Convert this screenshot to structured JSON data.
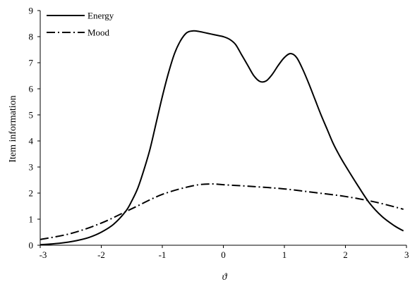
{
  "chart_data": {
    "type": "line",
    "xlabel": "ϑ",
    "ylabel": "Item information",
    "xlim": [
      -3,
      3
    ],
    "ylim": [
      0,
      9
    ],
    "xticks": [
      "-3",
      "-2",
      "-1",
      "0",
      "1",
      "2",
      "3"
    ],
    "yticks": [
      "0",
      "1",
      "2",
      "3",
      "4",
      "5",
      "6",
      "7",
      "8",
      "9"
    ],
    "grid": false,
    "legend_position": "top-left",
    "series": [
      {
        "name": "Energy",
        "style": "solid",
        "color": "#000000",
        "x": [
          -3,
          -2.8,
          -2.6,
          -2.4,
          -2.2,
          -2.0,
          -1.8,
          -1.6,
          -1.5,
          -1.4,
          -1.3,
          -1.2,
          -1.1,
          -1.0,
          -0.9,
          -0.8,
          -0.7,
          -0.6,
          -0.5,
          -0.4,
          -0.3,
          -0.2,
          -0.1,
          0.0,
          0.1,
          0.2,
          0.3,
          0.4,
          0.5,
          0.6,
          0.7,
          0.8,
          0.9,
          1.0,
          1.1,
          1.2,
          1.3,
          1.4,
          1.5,
          1.6,
          1.7,
          1.8,
          1.9,
          2.0,
          2.2,
          2.4,
          2.6,
          2.8,
          2.95
        ],
        "y": [
          0.02,
          0.05,
          0.1,
          0.18,
          0.3,
          0.5,
          0.8,
          1.3,
          1.7,
          2.2,
          2.9,
          3.7,
          4.7,
          5.7,
          6.6,
          7.35,
          7.85,
          8.15,
          8.22,
          8.2,
          8.15,
          8.1,
          8.05,
          8.0,
          7.9,
          7.7,
          7.3,
          6.9,
          6.5,
          6.28,
          6.3,
          6.55,
          6.9,
          7.2,
          7.35,
          7.2,
          6.75,
          6.2,
          5.6,
          5.0,
          4.45,
          3.9,
          3.45,
          3.05,
          2.3,
          1.6,
          1.1,
          0.75,
          0.55
        ]
      },
      {
        "name": "Mood",
        "style": "dash-dot",
        "color": "#000000",
        "x": [
          -3,
          -2.5,
          -2.0,
          -1.5,
          -1.0,
          -0.5,
          -0.2,
          0.0,
          0.5,
          1.0,
          1.5,
          2.0,
          2.5,
          2.95
        ],
        "y": [
          0.22,
          0.45,
          0.85,
          1.4,
          1.95,
          2.28,
          2.35,
          2.32,
          2.25,
          2.16,
          2.02,
          1.87,
          1.65,
          1.38
        ]
      }
    ]
  }
}
